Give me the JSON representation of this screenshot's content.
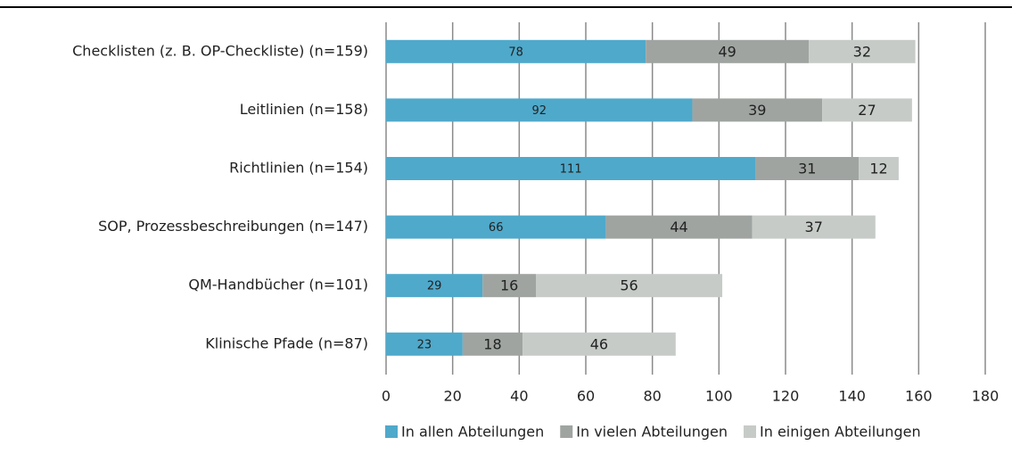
{
  "chart_data": {
    "type": "bar",
    "orientation": "horizontal",
    "stacked": true,
    "categories": [
      "Checklisten (z. B. OP-Checkliste) (n=159)",
      "Leitlinien (n=158)",
      "Richtlinien (n=154)",
      "SOP, Prozessbeschreibungen (n=147)",
      "QM-Handbücher (n=101)",
      "Klinische Pfade (n=87)"
    ],
    "series": [
      {
        "name": "In allen Abteilungen",
        "color": "#4fa9cb",
        "values": [
          78,
          92,
          111,
          66,
          29,
          23
        ]
      },
      {
        "name": "In vielen Abteilungen",
        "color": "#9fa4a1",
        "values": [
          49,
          39,
          31,
          44,
          16,
          18
        ]
      },
      {
        "name": "In einigen Abteilungen",
        "color": "#c6cbc8",
        "values": [
          32,
          27,
          12,
          37,
          56,
          46
        ]
      }
    ],
    "xlim": [
      0,
      180
    ],
    "xticks": [
      0,
      20,
      40,
      60,
      80,
      100,
      120,
      140,
      160,
      180
    ],
    "grid": true,
    "legend": "bottom"
  }
}
